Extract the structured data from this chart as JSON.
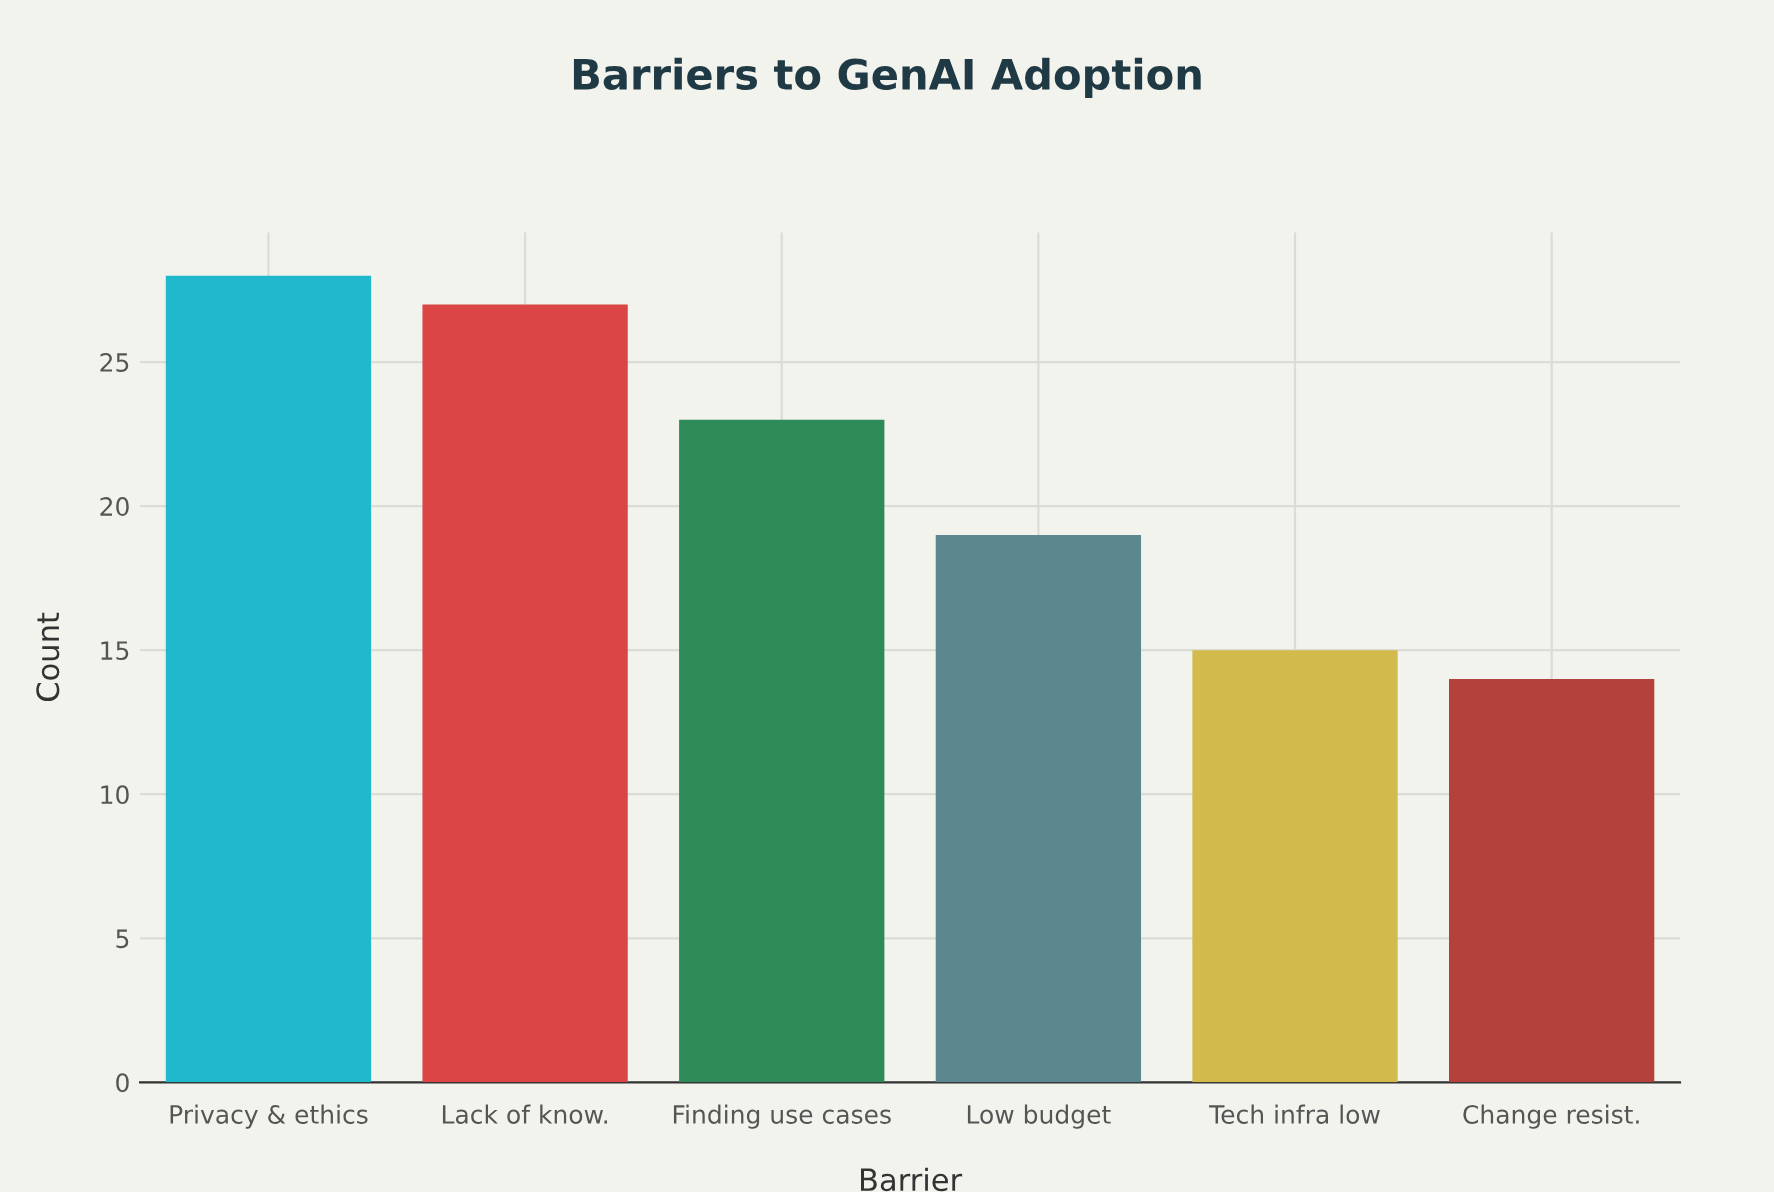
{
  "chart_data": {
    "type": "bar",
    "title": "Barriers to GenAI Adoption",
    "xlabel": "Barrier",
    "ylabel": "Count",
    "categories": [
      "Privacy & ethics",
      "Lack of know.",
      "Finding use cases",
      "Low budget",
      "Tech infra low",
      "Change resist."
    ],
    "values": [
      28,
      27,
      23,
      19,
      15,
      14
    ],
    "colors": [
      "#1fb8cd",
      "#db4545",
      "#2e8b57",
      "#5d878f",
      "#d2ba4c",
      "#b4413c"
    ],
    "ylim": [
      0,
      29.5
    ],
    "yticks": [
      0,
      5,
      10,
      15,
      20,
      25
    ],
    "grid": true,
    "legend": false
  }
}
